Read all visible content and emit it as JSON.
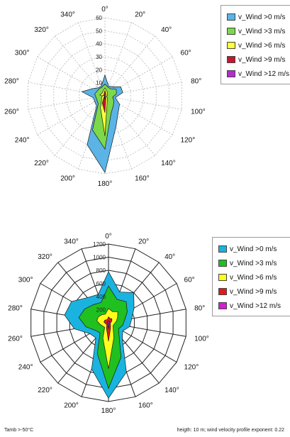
{
  "chart_data": [
    {
      "type": "radar",
      "title": "",
      "direction_labels": [
        "0°",
        "20°",
        "40°",
        "60°",
        "80°",
        "100°",
        "120°",
        "140°",
        "160°",
        "180°",
        "200°",
        "220°",
        "240°",
        "260°",
        "280°",
        "300°",
        "320°",
        "340°"
      ],
      "radial_ticks": [
        10,
        20,
        30,
        40,
        50,
        60
      ],
      "rlim": [
        0,
        60
      ],
      "grid": true,
      "legend_position": "top-right",
      "series": [
        {
          "name": "v_Wind >0 m/s",
          "color": "#5BB3E6",
          "values": [
            16,
            8,
            9,
            14,
            14,
            8,
            13,
            16,
            25,
            59,
            40,
            10,
            9,
            9,
            18,
            11,
            8,
            8
          ]
        },
        {
          "name": "v_Wind >3 m/s",
          "color": "#7DD84A",
          "values": [
            9,
            7,
            7,
            10,
            9,
            6,
            8,
            10,
            14,
            41,
            28,
            8,
            7,
            7,
            8,
            7,
            7,
            7
          ]
        },
        {
          "name": "v_Wind >6 m/s",
          "color": "#FFFF3A",
          "values": [
            6,
            4,
            3,
            2,
            2,
            1,
            2,
            3,
            5,
            31,
            10,
            4,
            3,
            2,
            4,
            3,
            3,
            4
          ]
        },
        {
          "name": "v_Wind >9 m/s",
          "color": "#C0192E",
          "values": [
            4,
            2,
            1,
            0,
            0,
            0,
            0,
            1,
            2,
            13,
            6,
            1,
            0,
            0,
            2,
            1,
            1,
            2
          ]
        },
        {
          "name": "v_Wind >12 m/s",
          "color": "#B62BD0",
          "values": [
            1,
            0,
            0,
            0,
            0,
            0,
            0,
            0,
            0,
            3,
            1,
            0,
            0,
            0,
            0,
            0,
            0,
            0
          ]
        }
      ]
    },
    {
      "type": "radar",
      "title": "",
      "direction_labels": [
        "0°",
        "20°",
        "40°",
        "60°",
        "80°",
        "100°",
        "120°",
        "140°",
        "160°",
        "180°",
        "200°",
        "220°",
        "240°",
        "260°",
        "280°",
        "300°",
        "320°",
        "340°"
      ],
      "radial_ticks": [
        200,
        400,
        600,
        800,
        1000,
        1200
      ],
      "rlim": [
        0,
        1200
      ],
      "grid": true,
      "legend_position": "top-right",
      "series": [
        {
          "name": "v_Wind >0 m/s",
          "color": "#1AB3E0",
          "values": [
            780,
            500,
            600,
            450,
            360,
            330,
            250,
            330,
            800,
            1150,
            750,
            300,
            330,
            530,
            680,
            650,
            500,
            460
          ]
        },
        {
          "name": "v_Wind >3 m/s",
          "color": "#1FC01F",
          "values": [
            560,
            380,
            420,
            330,
            250,
            220,
            180,
            250,
            560,
            1000,
            500,
            200,
            230,
            350,
            460,
            420,
            360,
            330
          ]
        },
        {
          "name": "v_Wind >6 m/s",
          "color": "#FFFF1A",
          "values": [
            220,
            180,
            220,
            160,
            120,
            90,
            80,
            110,
            240,
            700,
            250,
            90,
            100,
            130,
            180,
            180,
            160,
            140
          ]
        },
        {
          "name": "v_Wind >9 m/s",
          "color": "#E01A1A",
          "values": [
            90,
            70,
            80,
            60,
            40,
            30,
            30,
            50,
            90,
            280,
            90,
            40,
            40,
            50,
            70,
            70,
            60,
            50
          ]
        },
        {
          "name": "v_Wind >12 m/s",
          "color": "#D21FD2",
          "values": [
            30,
            20,
            30,
            20,
            10,
            10,
            10,
            20,
            30,
            90,
            30,
            10,
            10,
            20,
            20,
            20,
            20,
            20
          ]
        }
      ]
    }
  ],
  "footer": {
    "left": "Tamb >-50°C",
    "right": "heigth: 10 m; wind velocity profile exponent: 0.22"
  }
}
